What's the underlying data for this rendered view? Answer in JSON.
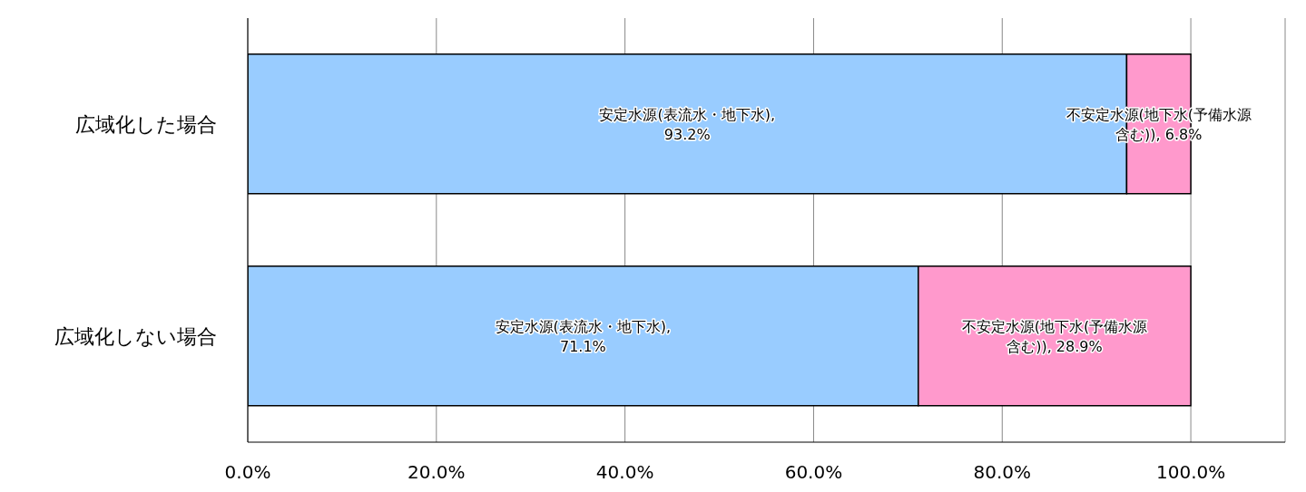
{
  "chart_data": {
    "type": "bar",
    "orientation": "horizontal",
    "stacked": true,
    "categories": [
      "広域化した場合",
      "広域化しない場合"
    ],
    "series": [
      {
        "color": "#99ccff",
        "values": [
          93.2,
          71.1
        ],
        "value_labels": [
          "安定水源(表流水・地下水), 93.2%",
          "安定水源(表流水・地下水), 71.1%"
        ]
      },
      {
        "color": "#ff99cc",
        "values": [
          6.8,
          28.9
        ],
        "value_labels": [
          "不安定水源(地下水(予備水源含む)), 6.8%",
          "不安定水源(地下水(予備水源含む)), 28.9%"
        ]
      }
    ],
    "xlim": [
      0,
      110
    ],
    "xticks": [
      {
        "value": 0,
        "label": "0.0%"
      },
      {
        "value": 20,
        "label": "20.0%"
      },
      {
        "value": 40,
        "label": "40.0%"
      },
      {
        "value": 60,
        "label": "60.0%"
      },
      {
        "value": 80,
        "label": "80.0%"
      },
      {
        "value": 100,
        "label": "100.0%"
      }
    ],
    "grid": "x",
    "legend": false
  }
}
